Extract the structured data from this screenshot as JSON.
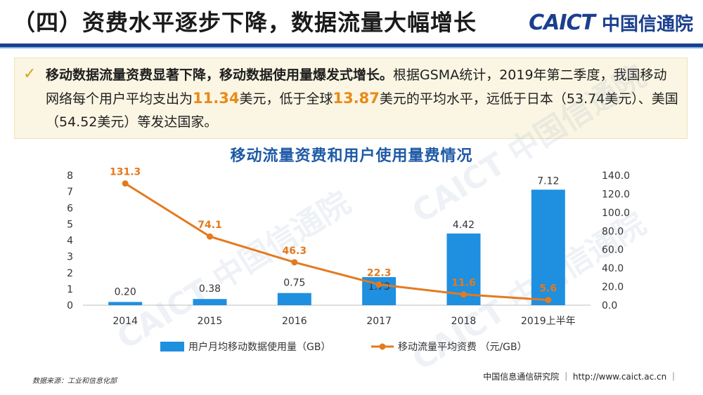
{
  "header": {
    "title": "（四）资费水平逐步下降，数据流量大幅增长",
    "logo_en": "CAICT",
    "logo_cn": "中国信通院"
  },
  "summary": {
    "bold_lead": "移动数据流量资费显著下降，移动数据使用量爆发式增长。",
    "text_1": "根据GSMA统计，2019年第二季度，我国移动网络每个用户平均支出为",
    "hl_1": "11.34",
    "text_2": "美元，低于全球",
    "hl_2": "13.87",
    "text_3": "美元的平均水平，远低于日本（53.74美元）、美国（54.52美元）等发达国家。"
  },
  "watermark": {
    "text": "CAICT 中国信通院"
  },
  "chart_data": {
    "type": "bar",
    "title": "移动流量资费和用户使用量费情况",
    "categories": [
      "2014",
      "2015",
      "2016",
      "2017",
      "2018",
      "2019上半年"
    ],
    "series": [
      {
        "name": "用户月均移动数据使用量（GB）",
        "type": "bar",
        "axis": "left",
        "values": [
          0.2,
          0.38,
          0.75,
          1.73,
          4.42,
          7.12
        ],
        "labels": [
          "0.20",
          "0.38",
          "0.75",
          "1.73",
          "4.42",
          "7.12"
        ],
        "color": "#1f8fe0"
      },
      {
        "name": "移动流量平均资费 （元/GB）",
        "type": "line",
        "axis": "right",
        "values": [
          131.3,
          74.1,
          46.3,
          22.3,
          11.6,
          5.6
        ],
        "labels": [
          "131.3",
          "74.1",
          "46.3",
          "22.3",
          "11.6",
          "5.6"
        ],
        "color": "#e37a1f"
      }
    ],
    "y_left": {
      "ylim": [
        0,
        8
      ],
      "ticks": [
        "0",
        "1",
        "2",
        "3",
        "4",
        "5",
        "6",
        "7",
        "8"
      ]
    },
    "y_right": {
      "ylim": [
        0,
        140
      ],
      "ticks": [
        "0.0",
        "20.0",
        "40.0",
        "60.0",
        "80.0",
        "100.0",
        "120.0",
        "140.0"
      ]
    },
    "legend_position": "bottom",
    "grid": false
  },
  "footer": {
    "source": "数据来源：工业和信息化部",
    "org": "中国信息通信研究院 ｜ http://www.caict.ac.cn ｜"
  }
}
